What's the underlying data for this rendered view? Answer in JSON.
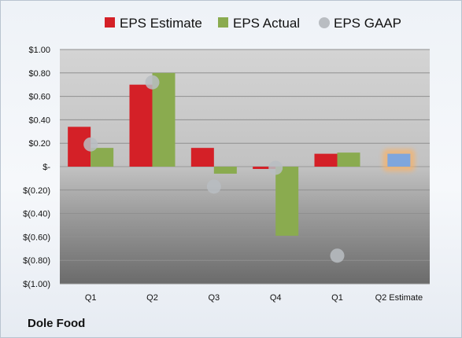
{
  "company": "Dole Food",
  "chart_data": {
    "type": "bar",
    "title": "",
    "xlabel": "",
    "ylabel": "",
    "ylim": [
      -1.0,
      1.0
    ],
    "y_ticks": [
      {
        "value": 1.0,
        "label": "$1.00"
      },
      {
        "value": 0.8,
        "label": "$0.80"
      },
      {
        "value": 0.6,
        "label": "$0.60"
      },
      {
        "value": 0.4,
        "label": "$0.40"
      },
      {
        "value": 0.2,
        "label": "$0.20"
      },
      {
        "value": 0.0,
        "label": "$-"
      },
      {
        "value": -0.2,
        "label": "$(0.20)"
      },
      {
        "value": -0.4,
        "label": "$(0.40)"
      },
      {
        "value": -0.6,
        "label": "$(0.60)"
      },
      {
        "value": -0.8,
        "label": "$(0.80)"
      },
      {
        "value": -1.0,
        "label": "$(1.00)"
      }
    ],
    "categories": [
      "Q1",
      "Q2",
      "Q3",
      "Q4",
      "Q1",
      "Q2 Estimate"
    ],
    "legend_position": "top",
    "grid": true,
    "series": [
      {
        "name": "EPS Estimate",
        "kind": "bar",
        "color": "#d42027",
        "values": [
          0.34,
          0.7,
          0.16,
          -0.02,
          0.11,
          null
        ]
      },
      {
        "name": "EPS Actual",
        "kind": "bar",
        "color": "#8aab4f",
        "values": [
          0.16,
          0.8,
          -0.06,
          -0.59,
          0.12,
          null
        ]
      },
      {
        "name": "EPS GAAP",
        "kind": "point",
        "color": "#b9bdc2",
        "values": [
          0.19,
          0.72,
          -0.17,
          -0.01,
          -0.76,
          null
        ]
      }
    ],
    "forecast": {
      "category": "Q2 Estimate",
      "value": 0.11,
      "color": "#7fa6dd",
      "glow": "#f6b26b"
    }
  }
}
